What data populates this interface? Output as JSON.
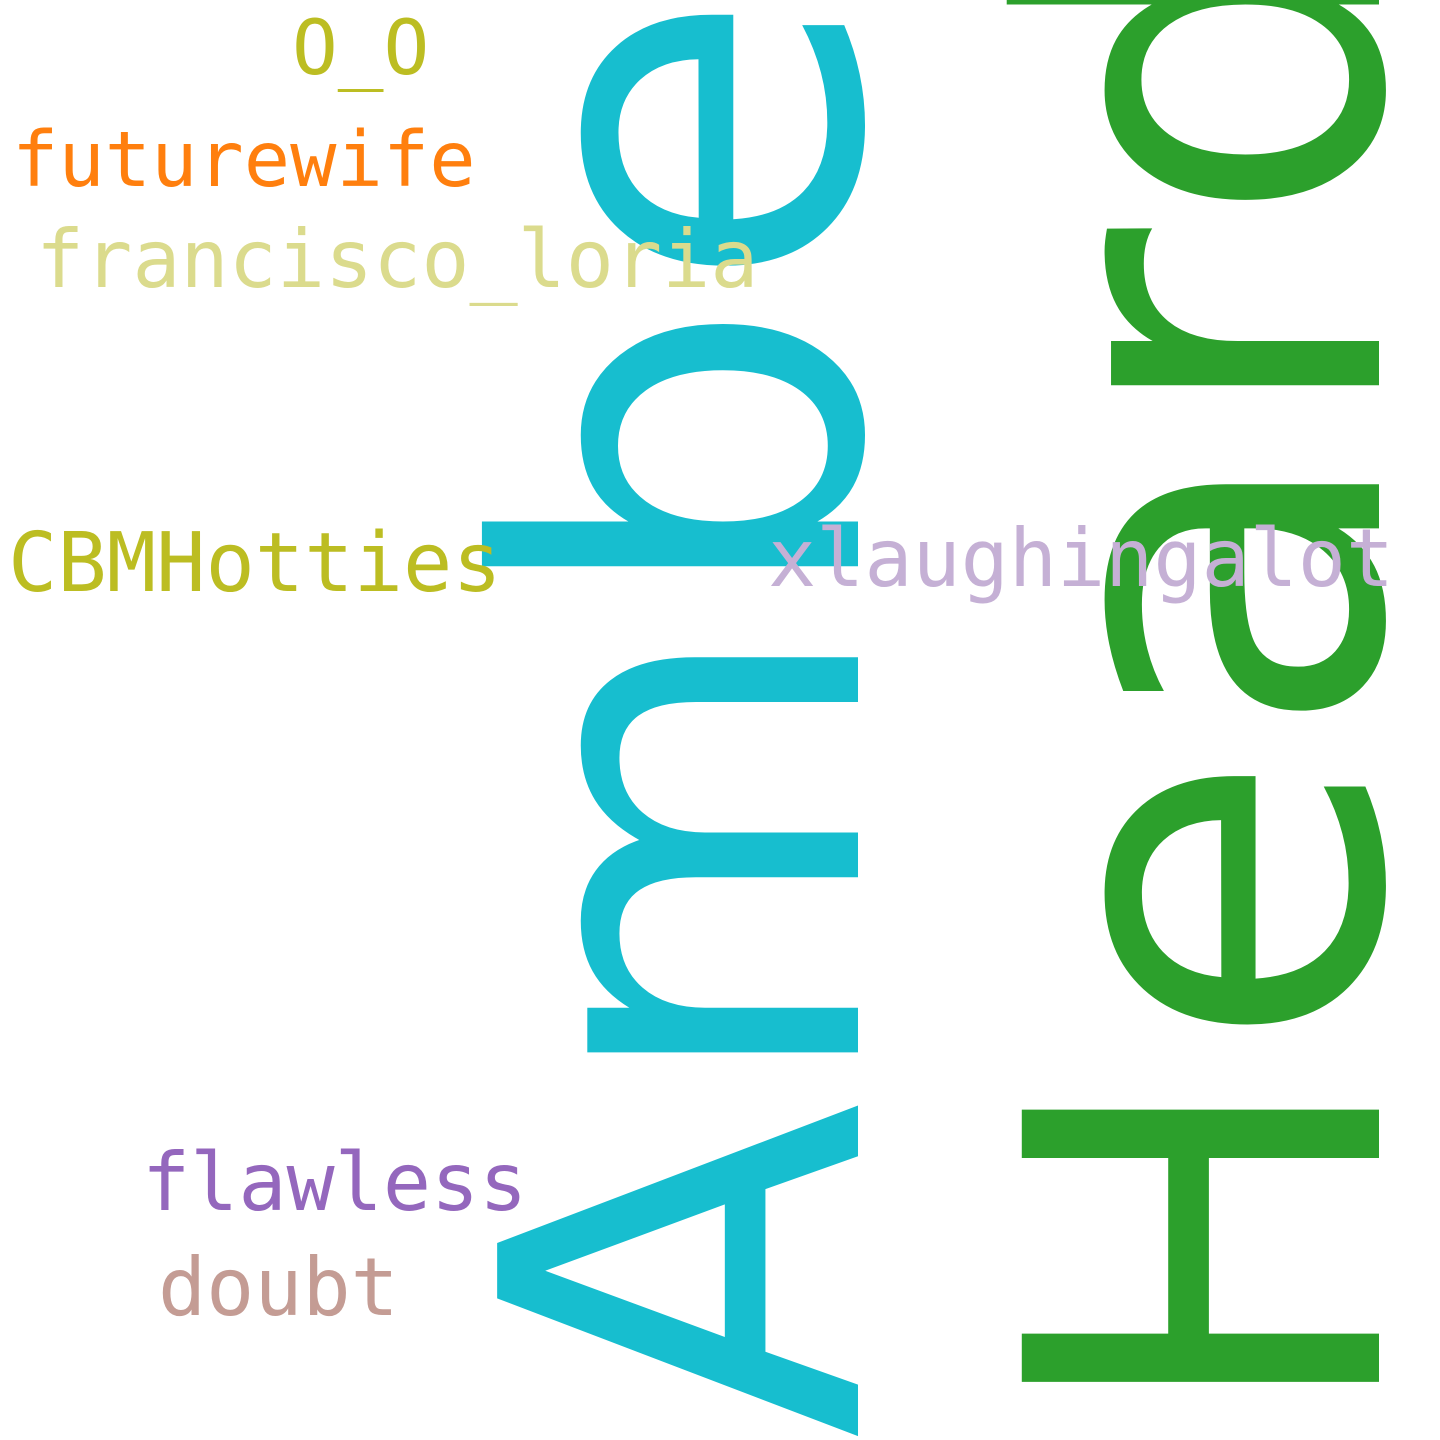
{
  "words": {
    "heard": {
      "text": "Heard",
      "color": "#2ca02c"
    },
    "amber": {
      "text": "Amber",
      "color": "#17becf"
    },
    "oo": {
      "text": "O_O",
      "color": "#bcbd22"
    },
    "futurewife": {
      "text": "futurewife",
      "color": "#ff7f0e"
    },
    "francisco": {
      "text": "francisco_loria",
      "color": "#dbdb8d"
    },
    "cbmhotties": {
      "text": "CBMHotties",
      "color": "#bcbd22"
    },
    "xlaughingalot": {
      "text": "xlaughingalot",
      "color": "#c5b0d5"
    },
    "flawless": {
      "text": "flawless",
      "color": "#9467bd"
    },
    "doubt": {
      "text": "doubt",
      "color": "#c49c94"
    }
  }
}
